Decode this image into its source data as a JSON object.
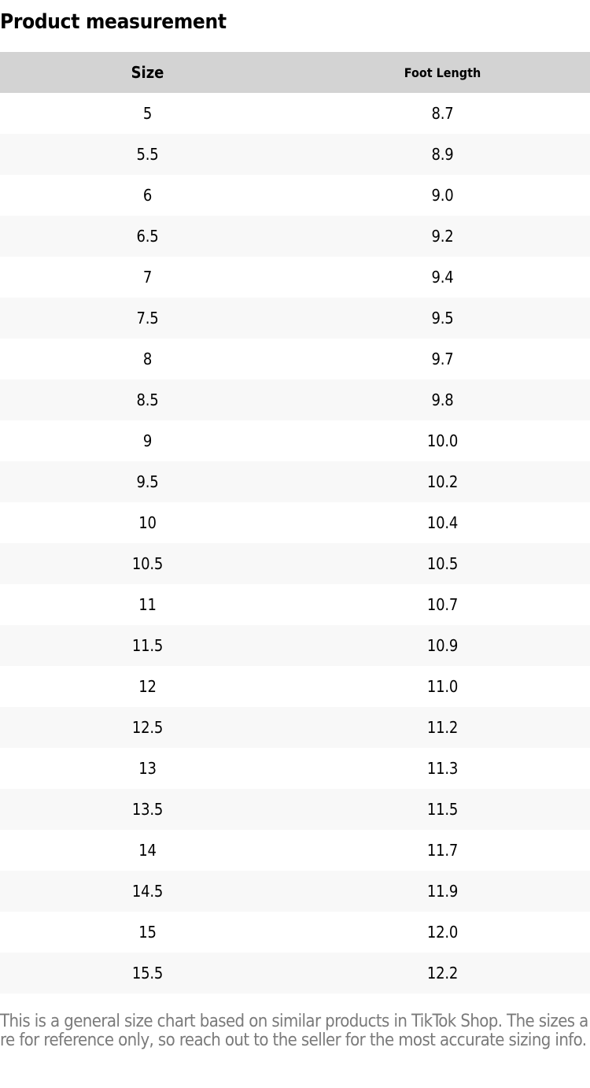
{
  "title": "Product measurement",
  "table": {
    "headers": [
      "Size",
      "Foot Length"
    ],
    "rows": [
      [
        "5",
        "8.7"
      ],
      [
        "5.5",
        "8.9"
      ],
      [
        "6",
        "9.0"
      ],
      [
        "6.5",
        "9.2"
      ],
      [
        "7",
        "9.4"
      ],
      [
        "7.5",
        "9.5"
      ],
      [
        "8",
        "9.7"
      ],
      [
        "8.5",
        "9.8"
      ],
      [
        "9",
        "10.0"
      ],
      [
        "9.5",
        "10.2"
      ],
      [
        "10",
        "10.4"
      ],
      [
        "10.5",
        "10.5"
      ],
      [
        "11",
        "10.7"
      ],
      [
        "11.5",
        "10.9"
      ],
      [
        "12",
        "11.0"
      ],
      [
        "12.5",
        "11.2"
      ],
      [
        "13",
        "11.3"
      ],
      [
        "13.5",
        "11.5"
      ],
      [
        "14",
        "11.7"
      ],
      [
        "14.5",
        "11.9"
      ],
      [
        "15",
        "12.0"
      ],
      [
        "15.5",
        "12.2"
      ]
    ]
  },
  "note": "This is a general size chart based on similar products in TikTok Shop. The sizes are for reference only, so reach out to the seller for the most accurate sizing info."
}
